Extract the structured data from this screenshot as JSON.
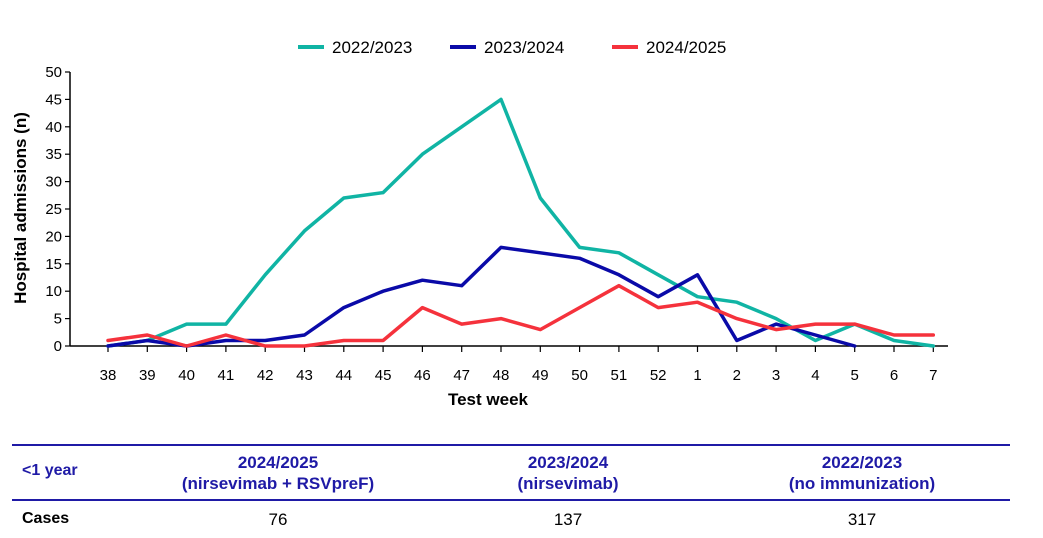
{
  "chart_data": {
    "type": "line",
    "xlabel": "Test week",
    "ylabel": "Hospital admissions (n)",
    "categories": [
      "38",
      "39",
      "40",
      "41",
      "42",
      "43",
      "44",
      "45",
      "46",
      "47",
      "48",
      "49",
      "50",
      "51",
      "52",
      "1",
      "2",
      "3",
      "4",
      "5",
      "6",
      "7"
    ],
    "ylim": [
      0,
      50
    ],
    "yticks": [
      0,
      5,
      10,
      15,
      20,
      25,
      30,
      35,
      40,
      45,
      50
    ],
    "legend_position": "top-center",
    "series": [
      {
        "name": "2022/2023",
        "color": "#10b4a4",
        "values": [
          0,
          1,
          4,
          4,
          13,
          21,
          27,
          28,
          35,
          40,
          45,
          27,
          18,
          17,
          13,
          9,
          8,
          5,
          1,
          4,
          1,
          0
        ]
      },
      {
        "name": "2023/2024",
        "color": "#0a0aa8",
        "values": [
          0,
          1,
          0,
          1,
          1,
          2,
          7,
          10,
          12,
          11,
          18,
          17,
          16,
          13,
          9,
          13,
          1,
          4,
          2,
          0,
          null,
          null
        ]
      },
      {
        "name": "2024/2025",
        "color": "#f5323c",
        "values": [
          1,
          2,
          0,
          2,
          0,
          0,
          1,
          1,
          7,
          4,
          5,
          3,
          7,
          11,
          7,
          8,
          5,
          3,
          4,
          4,
          2,
          2
        ]
      }
    ]
  },
  "table": {
    "row_header": "<1 year",
    "columns": [
      {
        "season": "2024/2025",
        "note": "(nirsevimab + RSVpreF)",
        "cases": "76"
      },
      {
        "season": "2023/2024",
        "note": "(nirsevimab)",
        "cases": "137"
      },
      {
        "season": "2022/2023",
        "note": "(no immunization)",
        "cases": "317"
      }
    ],
    "cases_label": "Cases"
  }
}
